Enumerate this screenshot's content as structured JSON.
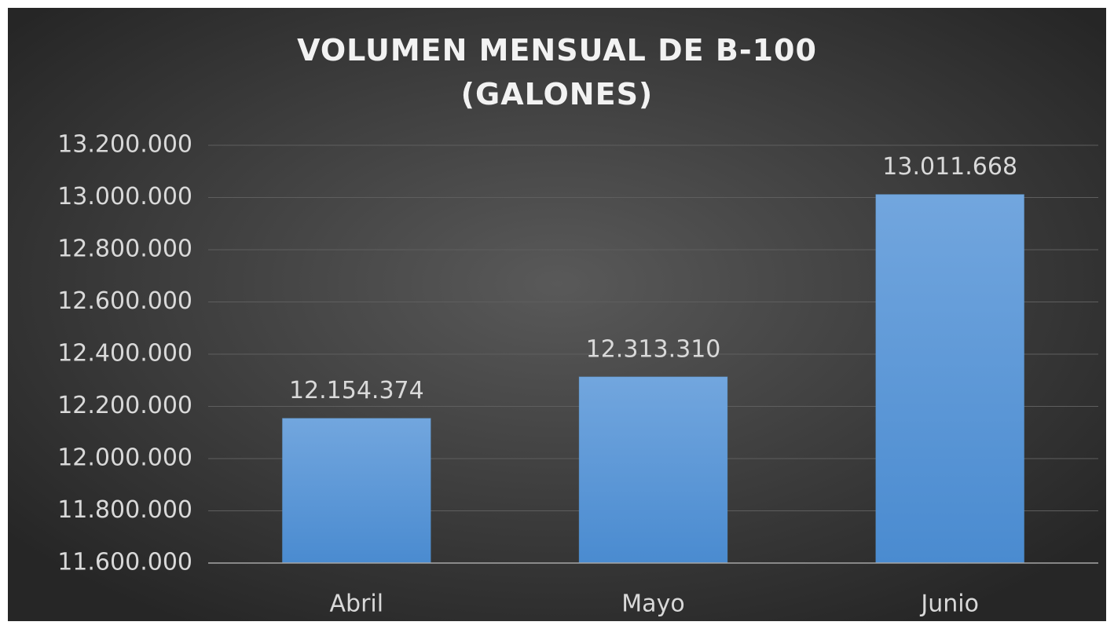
{
  "chart_data": {
    "type": "bar",
    "title": "VOLUMEN MENSUAL DE B-100 (GALONES)",
    "categories": [
      "Abril",
      "Mayo",
      "Junio"
    ],
    "values": [
      12154374,
      12313310,
      13011668
    ],
    "value_labels": [
      "12.154.374",
      "12.313.310",
      "13.011.668"
    ],
    "color": "#5b9bd5",
    "ylim": [
      11600000,
      13200000
    ],
    "yticks": [
      {
        "value": 11600000,
        "label": "11.600.000"
      },
      {
        "value": 11800000,
        "label": "11.800.000"
      },
      {
        "value": 12000000,
        "label": "12.000.000"
      },
      {
        "value": 12200000,
        "label": "12.200.000"
      },
      {
        "value": 12400000,
        "label": "12.400.000"
      },
      {
        "value": 12600000,
        "label": "12.600.000"
      },
      {
        "value": 12800000,
        "label": "12.800.000"
      },
      {
        "value": 13000000,
        "label": "13.000.000"
      },
      {
        "value": 13200000,
        "label": "13.200.000"
      }
    ],
    "grid": true
  }
}
